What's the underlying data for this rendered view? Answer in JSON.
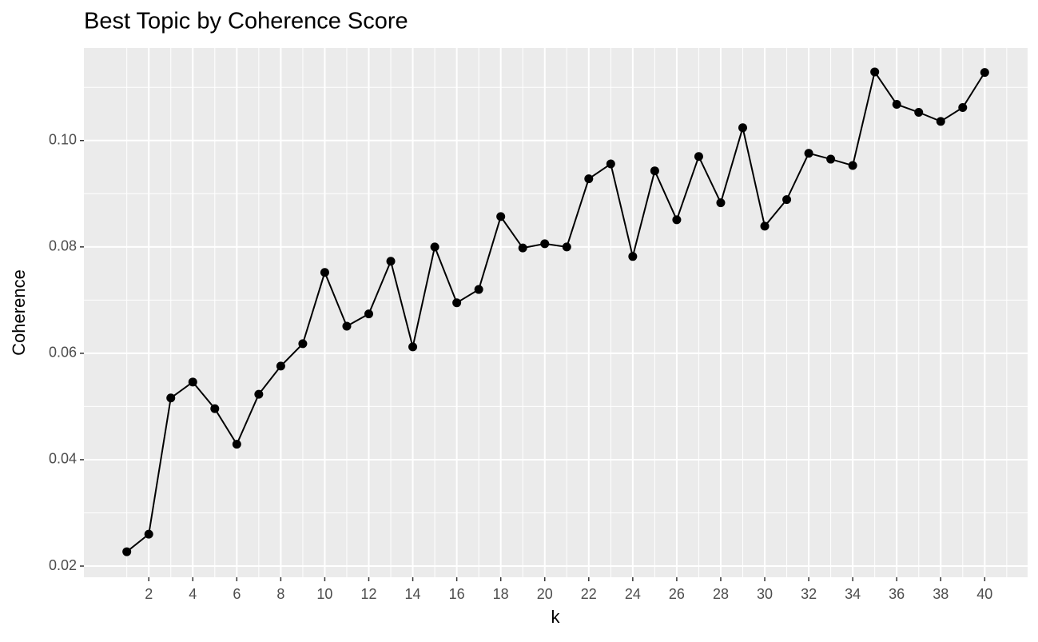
{
  "chart_data": {
    "type": "line",
    "title": "Best Topic by Coherence Score",
    "x_label": "k",
    "y_label": "Coherence",
    "x": [
      1,
      2,
      3,
      4,
      5,
      6,
      7,
      8,
      9,
      10,
      11,
      12,
      13,
      14,
      15,
      16,
      17,
      18,
      19,
      20,
      21,
      22,
      23,
      24,
      25,
      26,
      27,
      28,
      29,
      30,
      31,
      32,
      33,
      34,
      35,
      36,
      37,
      38,
      39,
      40
    ],
    "series": [
      {
        "color": "#000000",
        "values": [
          0.0227,
          0.026,
          0.0516,
          0.0546,
          0.0496,
          0.0429,
          0.0523,
          0.0576,
          0.0618,
          0.0752,
          0.0651,
          0.0674,
          0.0773,
          0.0612,
          0.08,
          0.0695,
          0.072,
          0.0857,
          0.0798,
          0.0806,
          0.08,
          0.0928,
          0.0956,
          0.0782,
          0.0943,
          0.0851,
          0.097,
          0.0883,
          0.1024,
          0.0839,
          0.0889,
          0.0976,
          0.0965,
          0.0953,
          0.1129,
          0.1068,
          0.1053,
          0.1036,
          0.1062,
          0.1128
        ]
      }
    ],
    "xlim": [
      -0.95,
      41.95
    ],
    "xticks": [
      2,
      4,
      6,
      8,
      10,
      12,
      14,
      16,
      18,
      20,
      22,
      24,
      26,
      28,
      30,
      32,
      34,
      36,
      38,
      40
    ],
    "ylim": [
      0.0179,
      0.1174
    ],
    "yticks": [
      0.02,
      0.04,
      0.06,
      0.08,
      {
        "value": 0.1,
        "label": "0.10"
      }
    ],
    "grid": true
  }
}
